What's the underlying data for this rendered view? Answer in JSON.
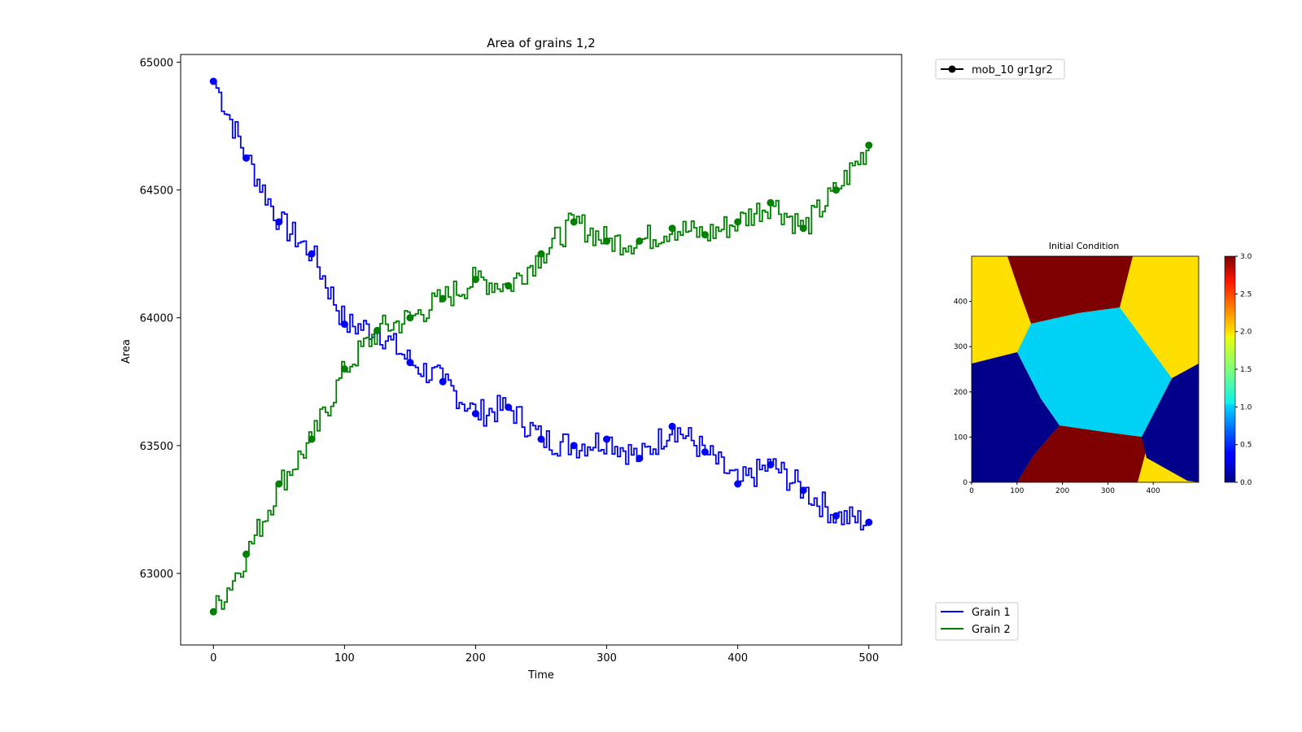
{
  "chart_data": [
    {
      "type": "line",
      "title": "Area of grains 1,2",
      "xlabel": "Time",
      "ylabel": "Area",
      "xlim": [
        -25,
        525
      ],
      "ylim": [
        62720,
        65030
      ],
      "xticks": [
        0,
        100,
        200,
        300,
        400,
        500
      ],
      "yticks": [
        63000,
        63500,
        64000,
        64500,
        65000
      ],
      "series": [
        {
          "name": "Grain 1",
          "color": "#0000ff",
          "x": [
            0,
            25,
            50,
            75,
            100,
            125,
            150,
            175,
            200,
            225,
            250,
            275,
            300,
            325,
            350,
            375,
            400,
            425,
            450,
            475,
            500
          ],
          "values": [
            64925,
            64625,
            64375,
            64250,
            63975,
            63950,
            63825,
            63750,
            63625,
            63650,
            63525,
            63500,
            63525,
            63450,
            63575,
            63475,
            63350,
            63425,
            63325,
            63225,
            63200
          ]
        },
        {
          "name": "Grain 2",
          "color": "#008000",
          "x": [
            0,
            25,
            50,
            75,
            100,
            125,
            150,
            175,
            200,
            225,
            250,
            275,
            300,
            325,
            350,
            375,
            400,
            425,
            450,
            475,
            500
          ],
          "values": [
            62850,
            63075,
            63350,
            63525,
            63800,
            63950,
            64000,
            64075,
            64150,
            64125,
            64250,
            64375,
            64300,
            64300,
            64350,
            64325,
            64375,
            64450,
            64350,
            64500,
            64675
          ]
        }
      ],
      "legend": {
        "marker_entry": "mob_10 gr1gr2",
        "marker_color": "#000000",
        "marker_placement": "upper-right-outside",
        "series_placement": "lower-right-outside"
      }
    },
    {
      "type": "heatmap",
      "title": "Initial Condition",
      "xlim": [
        0,
        500
      ],
      "ylim": [
        0,
        500
      ],
      "xticks": [
        0,
        100,
        200,
        300,
        400
      ],
      "yticks": [
        0,
        100,
        200,
        300,
        400
      ],
      "colorbar": {
        "range": [
          0.0,
          3.0
        ],
        "ticks": [
          "0.0",
          "0.5",
          "1.0",
          "1.5",
          "2.0",
          "2.5",
          "3.0"
        ],
        "colormap": "jet"
      },
      "regions": [
        {
          "value": 0.0,
          "color": "#00008b"
        },
        {
          "value": 1.0,
          "color": "#00d2f5"
        },
        {
          "value": 2.0,
          "color": "#ffdf00"
        },
        {
          "value": 3.0,
          "color": "#7f0000"
        }
      ]
    }
  ]
}
